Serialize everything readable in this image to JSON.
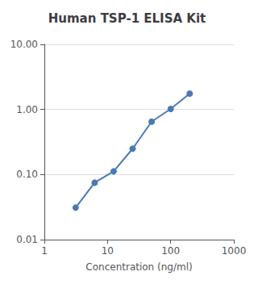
{
  "chart_data": {
    "type": "line",
    "title": "Human TSP-1 ELISA Kit",
    "xlabel": "Concentration (ng/ml)",
    "x": [
      3.13,
      6.25,
      12.5,
      25,
      50,
      100,
      200
    ],
    "values": [
      0.031,
      0.075,
      0.112,
      0.25,
      0.65,
      1.02,
      1.75
    ],
    "color": "#4a7ab5",
    "marker": "circle",
    "xlim": [
      1,
      1000
    ],
    "ylim": [
      0.01,
      10.0
    ],
    "xticks": [
      1,
      10,
      100,
      1000
    ],
    "yticks": [
      0.01,
      {
        "value": 0.1,
        "label": "0.10"
      },
      {
        "value": 1,
        "label": "1.00"
      },
      {
        "value": 10,
        "label": "10.00"
      }
    ],
    "log": true,
    "grid": true
  }
}
